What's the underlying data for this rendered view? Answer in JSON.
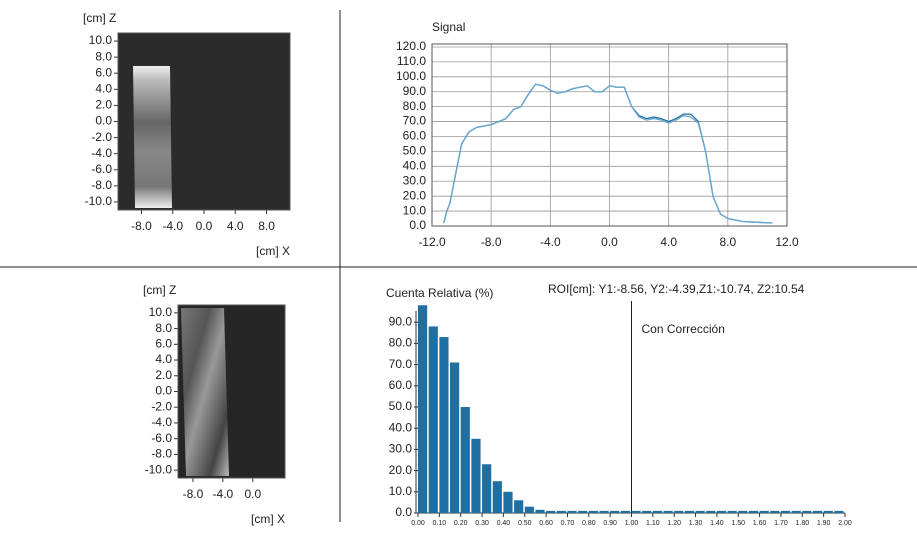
{
  "chart_data": [
    {
      "type": "image",
      "ylabel": "[cm] Z",
      "xlabel": "[cm] X",
      "xlim": [
        -11,
        11
      ],
      "ylim": [
        -11,
        11
      ],
      "xticks": [
        {
          "value": -8,
          "label": "-8.0"
        },
        {
          "value": -4,
          "label": "-4.0"
        },
        {
          "value": 0,
          "label": "0.0"
        },
        {
          "value": 4,
          "label": "4.0"
        },
        {
          "value": 8,
          "label": "8.0"
        }
      ],
      "yticks": [
        {
          "value": 10,
          "label": "10.0"
        },
        {
          "value": 8,
          "label": "8.0"
        },
        {
          "value": 6,
          "label": "6.0"
        },
        {
          "value": 4,
          "label": "4.0"
        },
        {
          "value": 2,
          "label": "2.0"
        },
        {
          "value": 0,
          "label": "0.0"
        },
        {
          "value": -2,
          "label": "-2.0"
        },
        {
          "value": -4,
          "label": "-4.0"
        },
        {
          "value": -6,
          "label": "-6.0"
        },
        {
          "value": -8,
          "label": "-8.0"
        },
        {
          "value": -10,
          "label": "-10.0"
        }
      ]
    },
    {
      "type": "line",
      "title": "Signal",
      "grid": true,
      "x": [
        -11.2,
        -11,
        -10.8,
        -10.5,
        -10,
        -9.5,
        -9,
        -8.5,
        -8,
        -7.5,
        -7,
        -6.5,
        -6,
        -5.5,
        -5,
        -4.5,
        -4,
        -3.5,
        -3,
        -2.5,
        -2,
        -1.5,
        -1,
        -0.5,
        0,
        0.5,
        1,
        1.5,
        2,
        2.5,
        3,
        3.5,
        4,
        4.5,
        5,
        5.5,
        6,
        6.5,
        7,
        7.5,
        8,
        8.5,
        9,
        10,
        11
      ],
      "series": [
        {
          "color": "#1f6fa3",
          "values": [
            2,
            10,
            15,
            30,
            55,
            63,
            66,
            67,
            68,
            70,
            72,
            78,
            80,
            88,
            95,
            94,
            91,
            89,
            90,
            92,
            93,
            94,
            90,
            90,
            94,
            93,
            93,
            80,
            74,
            72,
            73,
            72,
            70,
            72,
            75,
            75,
            70,
            50,
            20,
            8,
            5,
            4,
            3,
            2.5,
            2
          ]
        },
        {
          "color": "#6aa8d0",
          "values": [
            2,
            10,
            15,
            30,
            55,
            63,
            66,
            67,
            68,
            70,
            72,
            78,
            80,
            88,
            95,
            94,
            91,
            89,
            90,
            92,
            93,
            94,
            90,
            90,
            94,
            93,
            93,
            80,
            73,
            71,
            72,
            71,
            69,
            71,
            74,
            73,
            69,
            50,
            20,
            8,
            5,
            4,
            3,
            2.5,
            2
          ]
        }
      ],
      "xlim": [
        -12,
        12
      ],
      "ylim": [
        0,
        122
      ],
      "xticks": [
        {
          "value": -12,
          "label": "-12.0"
        },
        {
          "value": -8,
          "label": "-8.0"
        },
        {
          "value": -4,
          "label": "-4.0"
        },
        {
          "value": 0,
          "label": "0.0"
        },
        {
          "value": 4,
          "label": "4.0"
        },
        {
          "value": 8,
          "label": "8.0"
        },
        {
          "value": 12,
          "label": "12.0"
        }
      ],
      "yticks": [
        {
          "value": 0,
          "label": "0.0"
        },
        {
          "value": 10,
          "label": "10.0"
        },
        {
          "value": 20,
          "label": "20.0"
        },
        {
          "value": 30,
          "label": "30.0"
        },
        {
          "value": 40,
          "label": "40.0"
        },
        {
          "value": 50,
          "label": "50.0"
        },
        {
          "value": 60,
          "label": "60.0"
        },
        {
          "value": 70,
          "label": "70.0"
        },
        {
          "value": 80,
          "label": "80.0"
        },
        {
          "value": 90,
          "label": "90.0"
        },
        {
          "value": 100,
          "label": "100.0"
        },
        {
          "value": 110,
          "label": "110.0"
        },
        {
          "value": 120,
          "label": "120.0"
        }
      ]
    },
    {
      "type": "image",
      "ylabel": "[cm] Z",
      "xlabel": "[cm] X",
      "xlim": [
        -10,
        4.3
      ],
      "ylim": [
        -11,
        11
      ],
      "xticks": [
        {
          "value": -8,
          "label": "-8.0"
        },
        {
          "value": -4,
          "label": "-4.0"
        },
        {
          "value": 0,
          "label": "0.0"
        }
      ],
      "yticks": [
        {
          "value": 10,
          "label": "10.0"
        },
        {
          "value": 8,
          "label": "8.0"
        },
        {
          "value": 6,
          "label": "6.0"
        },
        {
          "value": 4,
          "label": "4.0"
        },
        {
          "value": 2,
          "label": "2.0"
        },
        {
          "value": 0,
          "label": "0.0"
        },
        {
          "value": -2,
          "label": "-2.0"
        },
        {
          "value": -4,
          "label": "-4.0"
        },
        {
          "value": -6,
          "label": "-6.0"
        },
        {
          "value": -8,
          "label": "-8.0"
        },
        {
          "value": -10,
          "label": "-10.0"
        }
      ]
    },
    {
      "type": "histogram",
      "title": "Cuenta Relativa (%)",
      "annotation": "ROI[cm]: Y1:-8.56, Y2:-4.39,Z1:-10.74, Z2:10.54",
      "threshold": 1.0,
      "threshold_label": "Con Corrección",
      "color": "#1f6fa3",
      "bins": [
        0,
        0.05,
        0.1,
        0.15,
        0.2,
        0.25,
        0.3,
        0.35,
        0.4,
        0.45,
        0.5,
        0.55,
        0.6,
        0.65,
        0.7,
        0.75,
        0.8,
        0.85,
        0.9,
        0.95,
        1,
        1.05,
        1.1,
        1.15,
        1.2,
        1.25,
        1.3,
        1.35,
        1.4,
        1.45,
        1.5,
        1.55,
        1.6,
        1.65,
        1.7,
        1.75,
        1.8,
        1.85,
        1.9,
        1.95,
        2
      ],
      "counts": [
        98,
        88,
        83,
        71,
        50,
        35,
        23,
        15,
        10,
        6,
        3,
        1.5,
        1,
        1,
        1,
        1,
        1,
        1,
        1,
        1,
        1,
        1,
        1,
        1,
        1,
        1,
        1,
        1,
        1,
        1,
        1,
        1,
        1,
        1,
        1,
        1,
        1,
        1,
        1,
        1
      ],
      "xlim": [
        0,
        2
      ],
      "ylim": [
        0,
        100
      ],
      "xticks": [
        {
          "value": 0,
          "label": "0.00"
        },
        {
          "value": 0.1,
          "label": "0.10"
        },
        {
          "value": 0.2,
          "label": "0.20"
        },
        {
          "value": 0.3,
          "label": "0.30"
        },
        {
          "value": 0.4,
          "label": "0.40"
        },
        {
          "value": 0.5,
          "label": "0.50"
        },
        {
          "value": 0.6,
          "label": "0.60"
        },
        {
          "value": 0.7,
          "label": "0.70"
        },
        {
          "value": 0.8,
          "label": "0.80"
        },
        {
          "value": 0.9,
          "label": "0.90"
        },
        {
          "value": 1,
          "label": "1.00"
        },
        {
          "value": 1.1,
          "label": "1.10"
        },
        {
          "value": 1.2,
          "label": "1.20"
        },
        {
          "value": 1.3,
          "label": "1.30"
        },
        {
          "value": 1.4,
          "label": "1.40"
        },
        {
          "value": 1.5,
          "label": "1.50"
        },
        {
          "value": 1.6,
          "label": "1.60"
        },
        {
          "value": 1.7,
          "label": "1.70"
        },
        {
          "value": 1.8,
          "label": "1.80"
        },
        {
          "value": 1.9,
          "label": "1.90"
        },
        {
          "value": 2,
          "label": "2.00"
        }
      ],
      "yticks": [
        {
          "value": 0,
          "label": "0.0"
        },
        {
          "value": 10,
          "label": "10.0"
        },
        {
          "value": 20,
          "label": "20.0"
        },
        {
          "value": 30,
          "label": "30.0"
        },
        {
          "value": 40,
          "label": "40.0"
        },
        {
          "value": 50,
          "label": "50.0"
        },
        {
          "value": 60,
          "label": "60.0"
        },
        {
          "value": 70,
          "label": "70.0"
        },
        {
          "value": 80,
          "label": "80.0"
        },
        {
          "value": 90,
          "label": "90.0"
        }
      ]
    }
  ]
}
